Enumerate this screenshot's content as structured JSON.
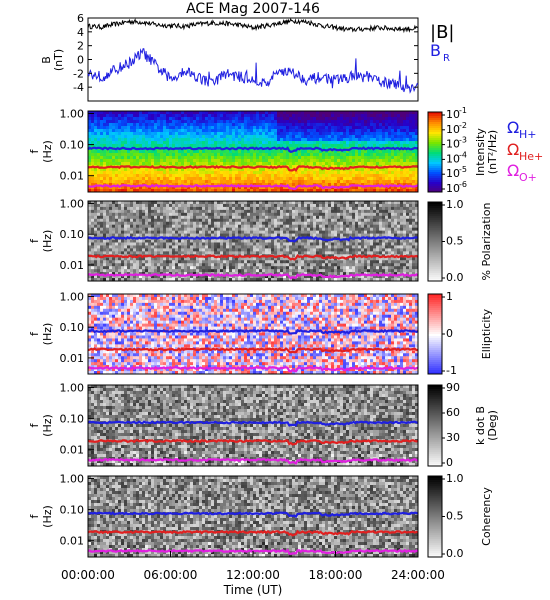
{
  "chart_data": [
    {
      "type": "line",
      "panel": "B",
      "title": "ACE Mag 2007-146",
      "ylabel_main": "B",
      "ylabel_unit": "(nT)",
      "ylim": [
        -6,
        6
      ],
      "yticks": [
        "6",
        "4",
        "2",
        "0",
        "-2",
        "-4"
      ],
      "series": [
        {
          "name": "|B|",
          "color": "#000000",
          "x_hours": [
            0,
            1,
            2,
            3,
            4,
            5,
            6,
            7,
            8,
            9,
            10,
            11,
            12,
            13,
            14,
            15,
            16,
            17,
            18,
            19,
            20,
            21,
            22,
            23,
            24
          ],
          "values": [
            4.8,
            4.7,
            5.1,
            5.5,
            5.4,
            5.0,
            4.9,
            4.8,
            5.1,
            5.3,
            5.2,
            5.0,
            4.6,
            4.9,
            5.3,
            5.6,
            5.4,
            4.9,
            4.6,
            4.3,
            4.4,
            4.6,
            4.5,
            4.4,
            4.5
          ]
        },
        {
          "name": "B",
          "subscript": "R",
          "color": "#2020e0",
          "x_hours": [
            0,
            1,
            2,
            3,
            4,
            5,
            6,
            7,
            8,
            9,
            10,
            11,
            12,
            13,
            14,
            15,
            16,
            17,
            18,
            19,
            20,
            21,
            22,
            23,
            24
          ],
          "values": [
            -2.0,
            -2.5,
            -1.5,
            -0.5,
            1.0,
            -1.0,
            -3.0,
            -1.5,
            -2.5,
            -3.5,
            -2.0,
            -2.5,
            -3.0,
            -3.5,
            -1.5,
            -2.0,
            -3.0,
            -2.5,
            -3.0,
            -2.5,
            -2.5,
            -3.0,
            -3.5,
            -4.0,
            -4.0
          ]
        }
      ]
    },
    {
      "type": "heatmap",
      "panel": "intensity",
      "ylabel_main": "f",
      "ylabel_unit": "(Hz)",
      "yscale": "log",
      "ylim": [
        0.003,
        1.2
      ],
      "yticks": [
        "1.00",
        "0.10",
        "0.01"
      ],
      "colorbar": {
        "label_main": "Intensity",
        "label_unit": "(nT²/Hz)",
        "ticks": [
          "10",
          "10",
          "10",
          "10",
          "10",
          "10"
        ],
        "tick_exponents": [
          "-1",
          "-2",
          "-3",
          "-4",
          "-5",
          "-6"
        ],
        "palette": "rainbow"
      },
      "overlay_lines": [
        {
          "name": "Ω",
          "subscript": "H+",
          "color": "#2020e0",
          "value_hz": 0.075
        },
        {
          "name": "Ω",
          "subscript": "He+",
          "color": "#e02020",
          "value_hz": 0.019
        },
        {
          "name": "Ω",
          "subscript": "O+",
          "color": "#e020e0",
          "value_hz": 0.0047
        }
      ]
    },
    {
      "type": "heatmap",
      "panel": "polarization",
      "ylabel_main": "f",
      "ylabel_unit": "(Hz)",
      "yscale": "log",
      "ylim": [
        0.003,
        1.2
      ],
      "yticks": [
        "1.00",
        "0.10",
        "0.01"
      ],
      "colorbar": {
        "label_main": "% Polarization",
        "label_unit": "",
        "ticks": [
          "1.0",
          "0.5",
          "0.0"
        ],
        "palette": "gray"
      }
    },
    {
      "type": "heatmap",
      "panel": "ellipticity",
      "ylabel_main": "f",
      "ylabel_unit": "(Hz)",
      "yscale": "log",
      "ylim": [
        0.003,
        1.2
      ],
      "yticks": [
        "1.00",
        "0.10",
        "0.01"
      ],
      "colorbar": {
        "label_main": "Ellipticity",
        "label_unit": "",
        "ticks": [
          "1",
          "0",
          "-1"
        ],
        "palette": "bwr"
      }
    },
    {
      "type": "heatmap",
      "panel": "kdotb",
      "ylabel_main": "f",
      "ylabel_unit": "(Hz)",
      "yscale": "log",
      "ylim": [
        0.003,
        1.2
      ],
      "yticks": [
        "1.00",
        "0.10",
        "0.01"
      ],
      "colorbar": {
        "label_main": "k dot B",
        "label_unit": "(Deg)",
        "ticks": [
          "90",
          "60",
          "30",
          "0"
        ],
        "palette": "gray"
      }
    },
    {
      "type": "heatmap",
      "panel": "coherency",
      "ylabel_main": "f",
      "ylabel_unit": "(Hz)",
      "yscale": "log",
      "ylim": [
        0.003,
        1.2
      ],
      "yticks": [
        "1.00",
        "0.10",
        "0.01"
      ],
      "colorbar": {
        "label_main": "Coherency",
        "label_unit": "",
        "ticks": [
          "1.0",
          "0.5",
          "0.0"
        ],
        "palette": "gray"
      }
    }
  ],
  "x_axis": {
    "label": "Time (UT)",
    "ticks": [
      "00:00:00",
      "06:00:00",
      "12:00:00",
      "18:00:00",
      "24:00:00"
    ],
    "xlim_hours": [
      0,
      24
    ]
  }
}
